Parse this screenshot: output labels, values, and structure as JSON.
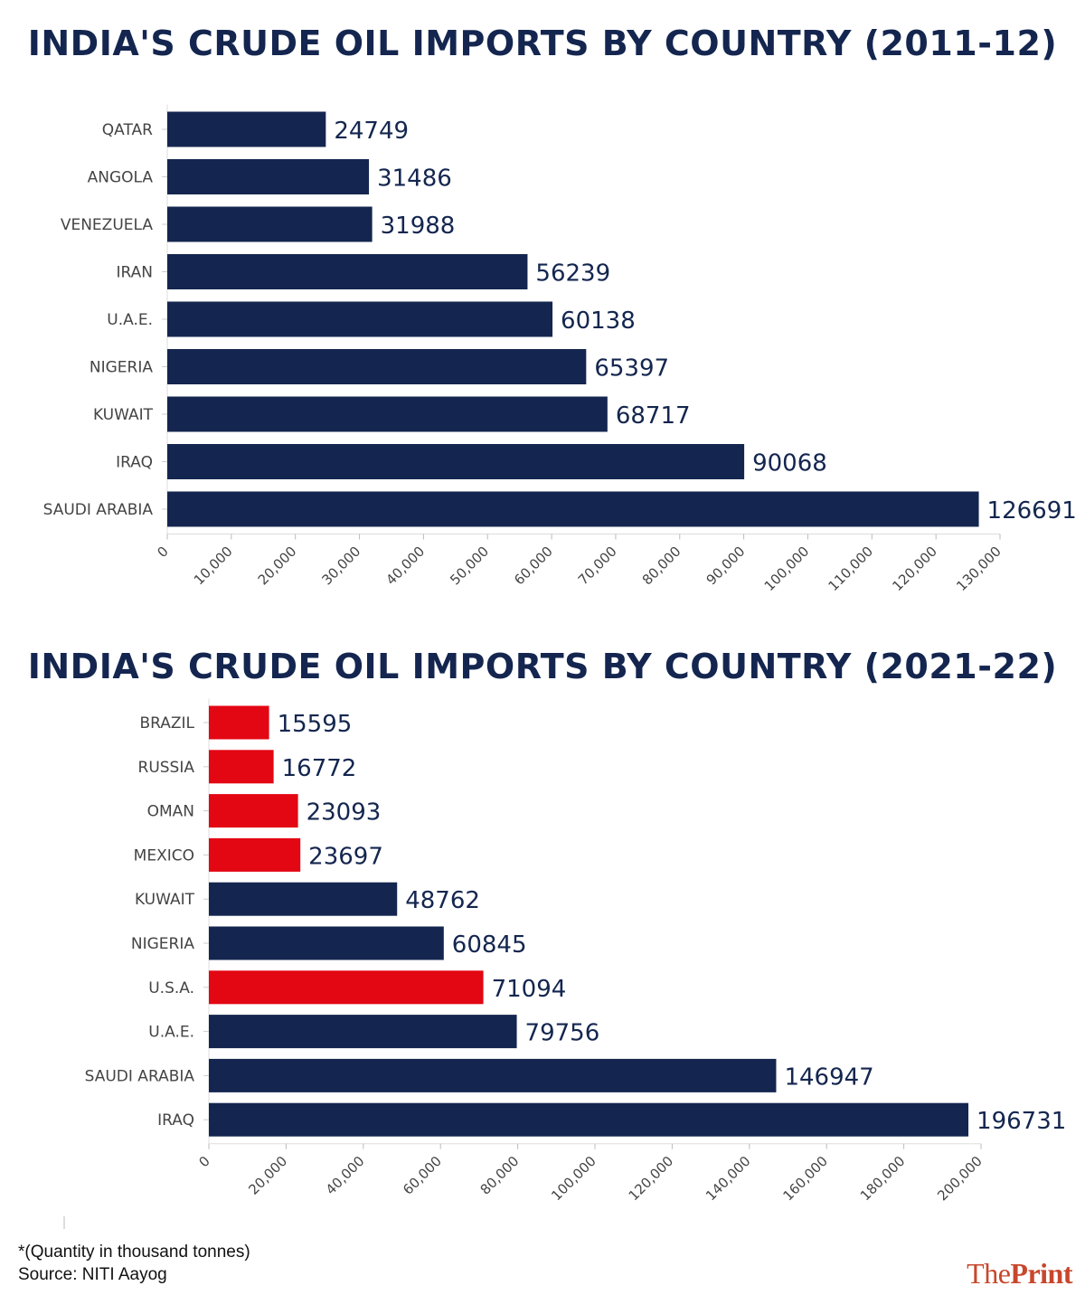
{
  "chart_data": [
    {
      "type": "bar",
      "orientation": "horizontal",
      "title": "INDIA'S CRUDE OIL IMPORTS BY COUNTRY (2011-12)",
      "categories": [
        "QATAR",
        "ANGOLA",
        "VENEZUELA",
        "IRAN",
        "U.A.E.",
        "NIGERIA",
        "KUWAIT",
        "IRAQ",
        "SAUDI ARABIA"
      ],
      "values": [
        24749,
        31486,
        31988,
        56239,
        60138,
        65397,
        68717,
        90068,
        126691
      ],
      "value_labels": [
        "24749",
        "31486",
        "31988",
        "56239",
        "60138",
        "65397",
        "68717",
        "90068",
        "126691"
      ],
      "colors": [
        "#14264f",
        "#14264f",
        "#14264f",
        "#14264f",
        "#14264f",
        "#14264f",
        "#14264f",
        "#14264f",
        "#14264f"
      ],
      "xlim": [
        0,
        130000
      ],
      "xticks": [
        "0",
        "10,000",
        "20,000",
        "30,000",
        "40,000",
        "50,000",
        "60,000",
        "70,000",
        "80,000",
        "90,000",
        "100,000",
        "110,000",
        "120,000",
        "130,000"
      ],
      "xlabel": "",
      "ylabel": "",
      "grid": false
    },
    {
      "type": "bar",
      "orientation": "horizontal",
      "title": "INDIA'S CRUDE OIL IMPORTS BY COUNTRY (2021-22)",
      "categories": [
        "BRAZIL",
        "RUSSIA",
        "OMAN",
        "MEXICO",
        "KUWAIT",
        "NIGERIA",
        "U.S.A.",
        "U.A.E.",
        "SAUDI ARABIA",
        "IRAQ"
      ],
      "values": [
        15595,
        16772,
        23093,
        23697,
        48762,
        60845,
        71094,
        79756,
        146947,
        196731
      ],
      "value_labels": [
        "15595",
        "16772",
        "23093",
        "23697",
        "48762",
        "60845",
        "71094",
        "79756",
        "146947",
        "196731"
      ],
      "colors": [
        "#e30613",
        "#e30613",
        "#e30613",
        "#e30613",
        "#14264f",
        "#14264f",
        "#e30613",
        "#14264f",
        "#14264f",
        "#14264f"
      ],
      "xlim": [
        0,
        200000
      ],
      "xticks": [
        "0",
        "20,000",
        "40,000",
        "60,000",
        "80,000",
        "100,000",
        "120,000",
        "140,000",
        "160,000",
        "180,000",
        "200,000"
      ],
      "xlabel": "",
      "ylabel": "",
      "grid": false
    }
  ],
  "footnote": "*(Quantity in thousand tonnes)",
  "source": "Source: NITI Aayog",
  "brand": {
    "part1": "The",
    "part2": "Print",
    "color": "#c8472c"
  }
}
